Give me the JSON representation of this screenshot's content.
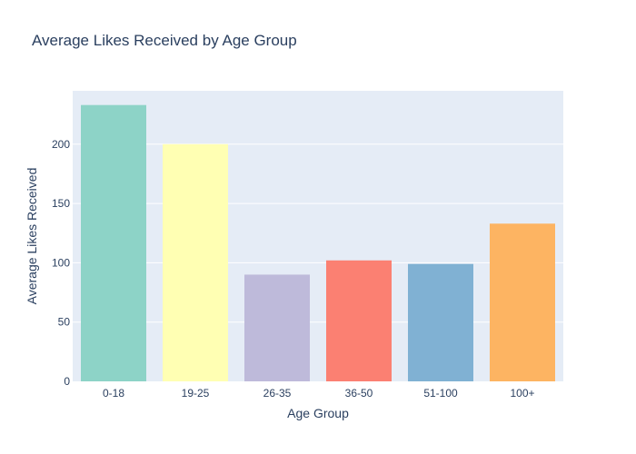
{
  "chart_data": {
    "type": "bar",
    "title": "Average Likes Received by Age Group",
    "xlabel": "Age Group",
    "ylabel": "Average Likes Received",
    "categories": [
      "0-18",
      "19-25",
      "26-35",
      "36-50",
      "51-100",
      "100+"
    ],
    "values": [
      233,
      200,
      90,
      102,
      99,
      133
    ],
    "colors": [
      "#8dd3c7",
      "#ffffb3",
      "#bebada",
      "#fb8072",
      "#80b1d3",
      "#fdb462"
    ],
    "ylim": [
      0,
      245
    ],
    "yticks": [
      0,
      50,
      100,
      150,
      200
    ],
    "grid": true,
    "plot_background": "#e5ecf6",
    "gridline_color": "#ffffff",
    "text_color": "#2a3f5f"
  }
}
